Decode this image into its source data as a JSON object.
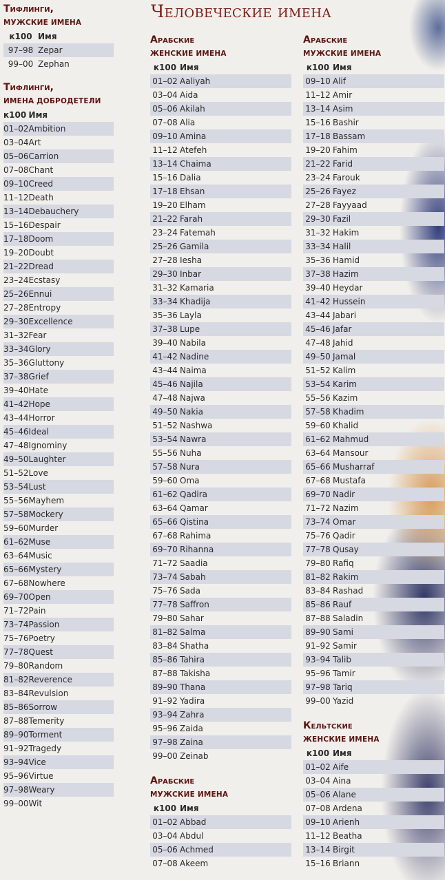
{
  "page_title": "Человеческие имена",
  "header": {
    "roll": "к100",
    "name": "Имя"
  },
  "tables": {
    "tiefling_male": {
      "title": "Тифлинги,",
      "subtitle": "мужские имена",
      "rows": [
        [
          "97–98",
          "Zepar"
        ],
        [
          "99–00",
          "Zephan"
        ]
      ]
    },
    "tiefling_virtue": {
      "title": "Тифлинги,",
      "subtitle": "имена добродетели",
      "rows": [
        [
          "01–02",
          "Ambition"
        ],
        [
          "03–04",
          "Art"
        ],
        [
          "05–06",
          "Carrion"
        ],
        [
          "07–08",
          "Chant"
        ],
        [
          "09–10",
          "Creed"
        ],
        [
          "11–12",
          "Death"
        ],
        [
          "13–14",
          "Debauchery"
        ],
        [
          "15–16",
          "Despair"
        ],
        [
          "17–18",
          "Doom"
        ],
        [
          "19–20",
          "Doubt"
        ],
        [
          "21–22",
          "Dread"
        ],
        [
          "23–24",
          "Ecstasy"
        ],
        [
          "25–26",
          "Ennui"
        ],
        [
          "27–28",
          "Entropy"
        ],
        [
          "29–30",
          "Excellence"
        ],
        [
          "31–32",
          "Fear"
        ],
        [
          "33–34",
          "Glory"
        ],
        [
          "35–36",
          "Gluttony"
        ],
        [
          "37–38",
          "Grief"
        ],
        [
          "39–40",
          "Hate"
        ],
        [
          "41–42",
          "Hope"
        ],
        [
          "43–44",
          "Horror"
        ],
        [
          "45–46",
          "Ideal"
        ],
        [
          "47–48",
          "Ignominy"
        ],
        [
          "49–50",
          "Laughter"
        ],
        [
          "51–52",
          "Love"
        ],
        [
          "53–54",
          "Lust"
        ],
        [
          "55–56",
          "Mayhem"
        ],
        [
          "57–58",
          "Mockery"
        ],
        [
          "59–60",
          "Murder"
        ],
        [
          "61–62",
          "Muse"
        ],
        [
          "63–64",
          "Music"
        ],
        [
          "65–66",
          "Mystery"
        ],
        [
          "67–68",
          "Nowhere"
        ],
        [
          "69–70",
          "Open"
        ],
        [
          "71–72",
          "Pain"
        ],
        [
          "73–74",
          "Passion"
        ],
        [
          "75–76",
          "Poetry"
        ],
        [
          "77–78",
          "Quest"
        ],
        [
          "79–80",
          "Random"
        ],
        [
          "81–82",
          "Reverence"
        ],
        [
          "83–84",
          "Revulsion"
        ],
        [
          "85–86",
          "Sorrow"
        ],
        [
          "87–88",
          "Temerity"
        ],
        [
          "89–90",
          "Torment"
        ],
        [
          "91–92",
          "Tragedy"
        ],
        [
          "93–94",
          "Vice"
        ],
        [
          "95–96",
          "Virtue"
        ],
        [
          "97–98",
          "Weary"
        ],
        [
          "99–00",
          "Wit"
        ]
      ]
    },
    "arabic_female": {
      "title": "Арабские",
      "subtitle": "женские имена",
      "rows": [
        [
          "01–02",
          "Aaliyah"
        ],
        [
          "03–04",
          "Aida"
        ],
        [
          "05–06",
          "Akilah"
        ],
        [
          "07–08",
          "Alia"
        ],
        [
          "09–10",
          "Amina"
        ],
        [
          "11–12",
          "Atefeh"
        ],
        [
          "13–14",
          "Chaima"
        ],
        [
          "15–16",
          "Dalia"
        ],
        [
          "17–18",
          "Ehsan"
        ],
        [
          "19–20",
          "Elham"
        ],
        [
          "21–22",
          "Farah"
        ],
        [
          "23–24",
          "Fatemah"
        ],
        [
          "25–26",
          "Gamila"
        ],
        [
          "27–28",
          "Iesha"
        ],
        [
          "29–30",
          "Inbar"
        ],
        [
          "31–32",
          "Kamaria"
        ],
        [
          "33–34",
          "Khadija"
        ],
        [
          "35–36",
          "Layla"
        ],
        [
          "37–38",
          "Lupe"
        ],
        [
          "39–40",
          "Nabila"
        ],
        [
          "41–42",
          "Nadine"
        ],
        [
          "43–44",
          "Naima"
        ],
        [
          "45–46",
          "Najila"
        ],
        [
          "47–48",
          "Najwa"
        ],
        [
          "49–50",
          "Nakia"
        ],
        [
          "51–52",
          "Nashwa"
        ],
        [
          "53–54",
          "Nawra"
        ],
        [
          "55–56",
          "Nuha"
        ],
        [
          "57–58",
          "Nura"
        ],
        [
          "59–60",
          "Oma"
        ],
        [
          "61–62",
          "Qadira"
        ],
        [
          "63–64",
          "Qamar"
        ],
        [
          "65–66",
          "Qistina"
        ],
        [
          "67–68",
          "Rahima"
        ],
        [
          "69–70",
          "Rihanna"
        ],
        [
          "71–72",
          "Saadia"
        ],
        [
          "73–74",
          "Sabah"
        ],
        [
          "75–76",
          "Sada"
        ],
        [
          "77–78",
          "Saffron"
        ],
        [
          "79–80",
          "Sahar"
        ],
        [
          "81–82",
          "Salma"
        ],
        [
          "83–84",
          "Shatha"
        ],
        [
          "85–86",
          "Tahira"
        ],
        [
          "87–88",
          "Takisha"
        ],
        [
          "89–90",
          "Thana"
        ],
        [
          "91–92",
          "Yadira"
        ],
        [
          "93–94",
          "Zahra"
        ],
        [
          "95–96",
          "Zaida"
        ],
        [
          "97–98",
          "Zaina"
        ],
        [
          "99–00",
          "Zeinab"
        ]
      ]
    },
    "arabic_male_start": {
      "title": "Арабские",
      "subtitle": "мужские имена",
      "rows": [
        [
          "01–02",
          "Abbad"
        ],
        [
          "03–04",
          "Abdul"
        ],
        [
          "05–06",
          "Achmed"
        ],
        [
          "07–08",
          "Akeem"
        ]
      ]
    },
    "arabic_male": {
      "title": "Арабские",
      "subtitle": "мужские имена",
      "rows": [
        [
          "09–10",
          "Alif"
        ],
        [
          "11–12",
          "Amir"
        ],
        [
          "13–14",
          "Asim"
        ],
        [
          "15–16",
          "Bashir"
        ],
        [
          "17–18",
          "Bassam"
        ],
        [
          "19–20",
          "Fahim"
        ],
        [
          "21–22",
          "Farid"
        ],
        [
          "23–24",
          "Farouk"
        ],
        [
          "25–26",
          "Fayez"
        ],
        [
          "27–28",
          "Fayyaad"
        ],
        [
          "29–30",
          "Fazil"
        ],
        [
          "31–32",
          "Hakim"
        ],
        [
          "33–34",
          "Halil"
        ],
        [
          "35–36",
          "Hamid"
        ],
        [
          "37–38",
          "Hazim"
        ],
        [
          "39–40",
          "Heydar"
        ],
        [
          "41–42",
          "Hussein"
        ],
        [
          "43–44",
          "Jabari"
        ],
        [
          "45–46",
          "Jafar"
        ],
        [
          "47–48",
          "Jahid"
        ],
        [
          "49–50",
          "Jamal"
        ],
        [
          "51–52",
          "Kalim"
        ],
        [
          "53–54",
          "Karim"
        ],
        [
          "55–56",
          "Kazim"
        ],
        [
          "57–58",
          "Khadim"
        ],
        [
          "59–60",
          "Khalid"
        ],
        [
          "61–62",
          "Mahmud"
        ],
        [
          "63–64",
          "Mansour"
        ],
        [
          "65–66",
          "Musharraf"
        ],
        [
          "67–68",
          "Mustafa"
        ],
        [
          "69–70",
          "Nadir"
        ],
        [
          "71–72",
          "Nazim"
        ],
        [
          "73–74",
          "Omar"
        ],
        [
          "75–76",
          "Qadir"
        ],
        [
          "77–78",
          "Qusay"
        ],
        [
          "79–80",
          "Rafiq"
        ],
        [
          "81–82",
          "Rakim"
        ],
        [
          "83–84",
          "Rashad"
        ],
        [
          "85–86",
          "Rauf"
        ],
        [
          "87–88",
          "Saladin"
        ],
        [
          "89–90",
          "Sami"
        ],
        [
          "91–92",
          "Samir"
        ],
        [
          "93–94",
          "Talib"
        ],
        [
          "95–96",
          "Tamir"
        ],
        [
          "97–98",
          "Tariq"
        ],
        [
          "99–00",
          "Yazid"
        ]
      ]
    },
    "celtic_female": {
      "title": "Кельтские",
      "subtitle": "женские имена",
      "rows": [
        [
          "01–02",
          "Aife"
        ],
        [
          "03–04",
          "Aina"
        ],
        [
          "05–06",
          "Alane"
        ],
        [
          "07–08",
          "Ardena"
        ],
        [
          "09–10",
          "Arienh"
        ],
        [
          "11–12",
          "Beatha"
        ],
        [
          "13–14",
          "Birgit"
        ],
        [
          "15–16",
          "Briann"
        ]
      ]
    }
  }
}
